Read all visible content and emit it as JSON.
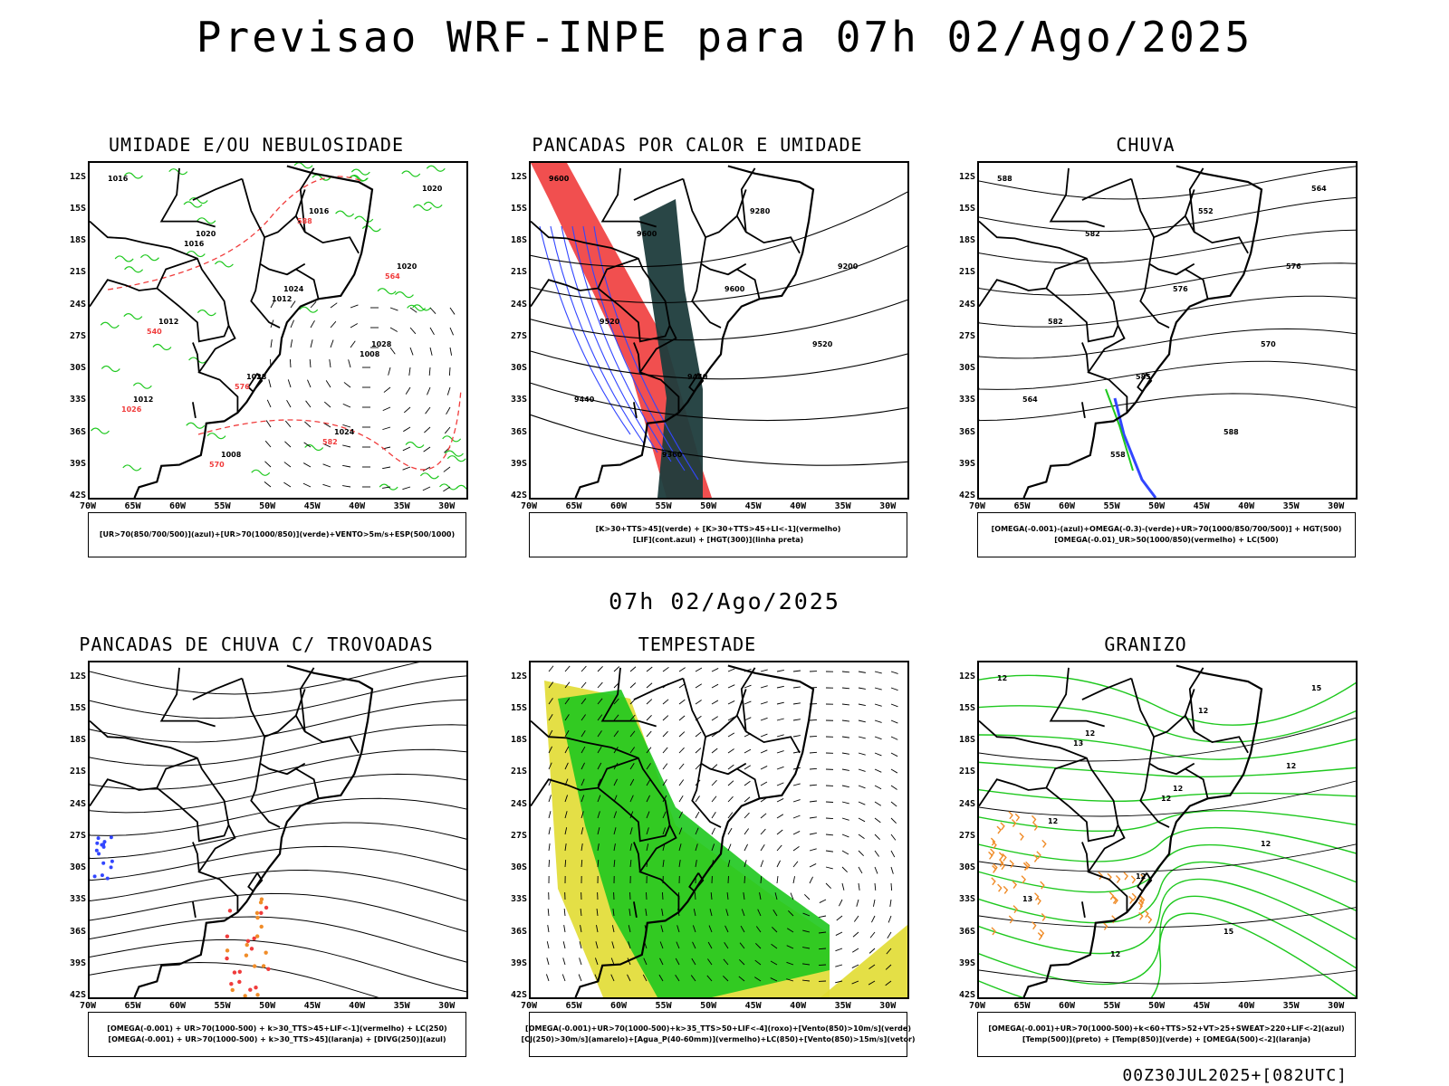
{
  "title": "Previsao WRF-INPE  para 07h 02/Ago/2025",
  "mid_title": "07h 02/Ago/2025",
  "footer": "00Z30JUL2025+[082UTC]",
  "lat_labels": [
    "12S",
    "15S",
    "18S",
    "21S",
    "24S",
    "27S",
    "30S",
    "33S",
    "36S",
    "39S",
    "42S"
  ],
  "lon_labels": [
    "70W",
    "65W",
    "60W",
    "55W",
    "50W",
    "45W",
    "40W",
    "35W",
    "30W"
  ],
  "colors": {
    "red": "#f03c3c",
    "green": "#1ec81e",
    "blue": "#3246ff",
    "dark": "#1e3c3c",
    "yellow": "#e1dc32",
    "orange": "#f08c28",
    "lavender": "#aaaaf0"
  },
  "panels": [
    {
      "title": "UMIDADE E/OU NEBULOSIDADE",
      "legend": [
        "[UR>70(850/700/500)](azul)+[UR>70(1000/850)](verde)+VENTO>5m/s+ESP(500/1000)"
      ],
      "contour_labels": [
        "1016",
        "1020",
        "1024",
        "1028",
        "1012",
        "1008",
        "1016",
        "1020",
        "1012",
        "1028",
        "1024",
        "1020",
        "1016",
        "1012",
        "1008",
        "1026",
        "570",
        "588",
        "564",
        "540",
        "576",
        "582"
      ]
    },
    {
      "title": "PANCADAS POR CALOR E UMIDADE",
      "legend": [
        "[K>30+TTS>45](verde) + [K>30+TTS>45+LI<-1](vermelho)",
        "[LIF](cont.azul) + [HGT(300)](linha preta)"
      ],
      "contour_labels": [
        "9600",
        "9600",
        "9600",
        "9520",
        "9440",
        "9360",
        "9280",
        "9200",
        "9520",
        "9440"
      ]
    },
    {
      "title": "CHUVA",
      "legend": [
        "[OMEGA(-0.001)-(azul)+OMEGA(-0.3)-(verde)+UR>70(1000/850/700/500)] + HGT(500)",
        "[OMEGA(-0.01)_UR>50(1000/850)(vermelho) + LC(500)"
      ],
      "contour_labels": [
        "588",
        "582",
        "576",
        "570",
        "564",
        "558",
        "552",
        "576",
        "582",
        "585",
        "588",
        "564"
      ]
    },
    {
      "title": "PANCADAS DE CHUVA C/ TROVOADAS",
      "legend": [
        "[OMEGA(-0.001) + UR>70(1000-500) + k>30_TTS>45+LIF<-1](vermelho) + LC(250)",
        "[OMEGA(-0.001) + UR>70(1000-500) + k>30_TTS>45](laranja) + [DIVG(250)](azul)"
      ],
      "contour_labels": []
    },
    {
      "title": "TEMPESTADE",
      "legend": [
        "[OMEGA(-0.001)+UR>70(1000-500)+k>35_TTS>50+LIF<-4](roxo)+[Vento(850)>10m/s](verde)",
        "[CJ(250)>30m/s](amarelo)+[Agua_P(40-60mm)](vermelho)+LC(850)+[Vento(850)>15m/s](vetor)"
      ],
      "contour_labels": []
    },
    {
      "title": "GRANIZO",
      "legend": [
        "[OMEGA(-0.001)+UR>70(1000-500)+k<60+TTS>52+VT>25+SWEAT>220+LIF<-2](azul)",
        "[Temp(500)](preto) + [Temp(850)](verde) + [OMEGA(500)<-2](laranja)"
      ],
      "contour_labels": [
        "12",
        "12",
        "12",
        "12",
        "13",
        "12",
        "12",
        "12",
        "12",
        "12",
        "15",
        "15",
        "13",
        "12"
      ]
    }
  ]
}
